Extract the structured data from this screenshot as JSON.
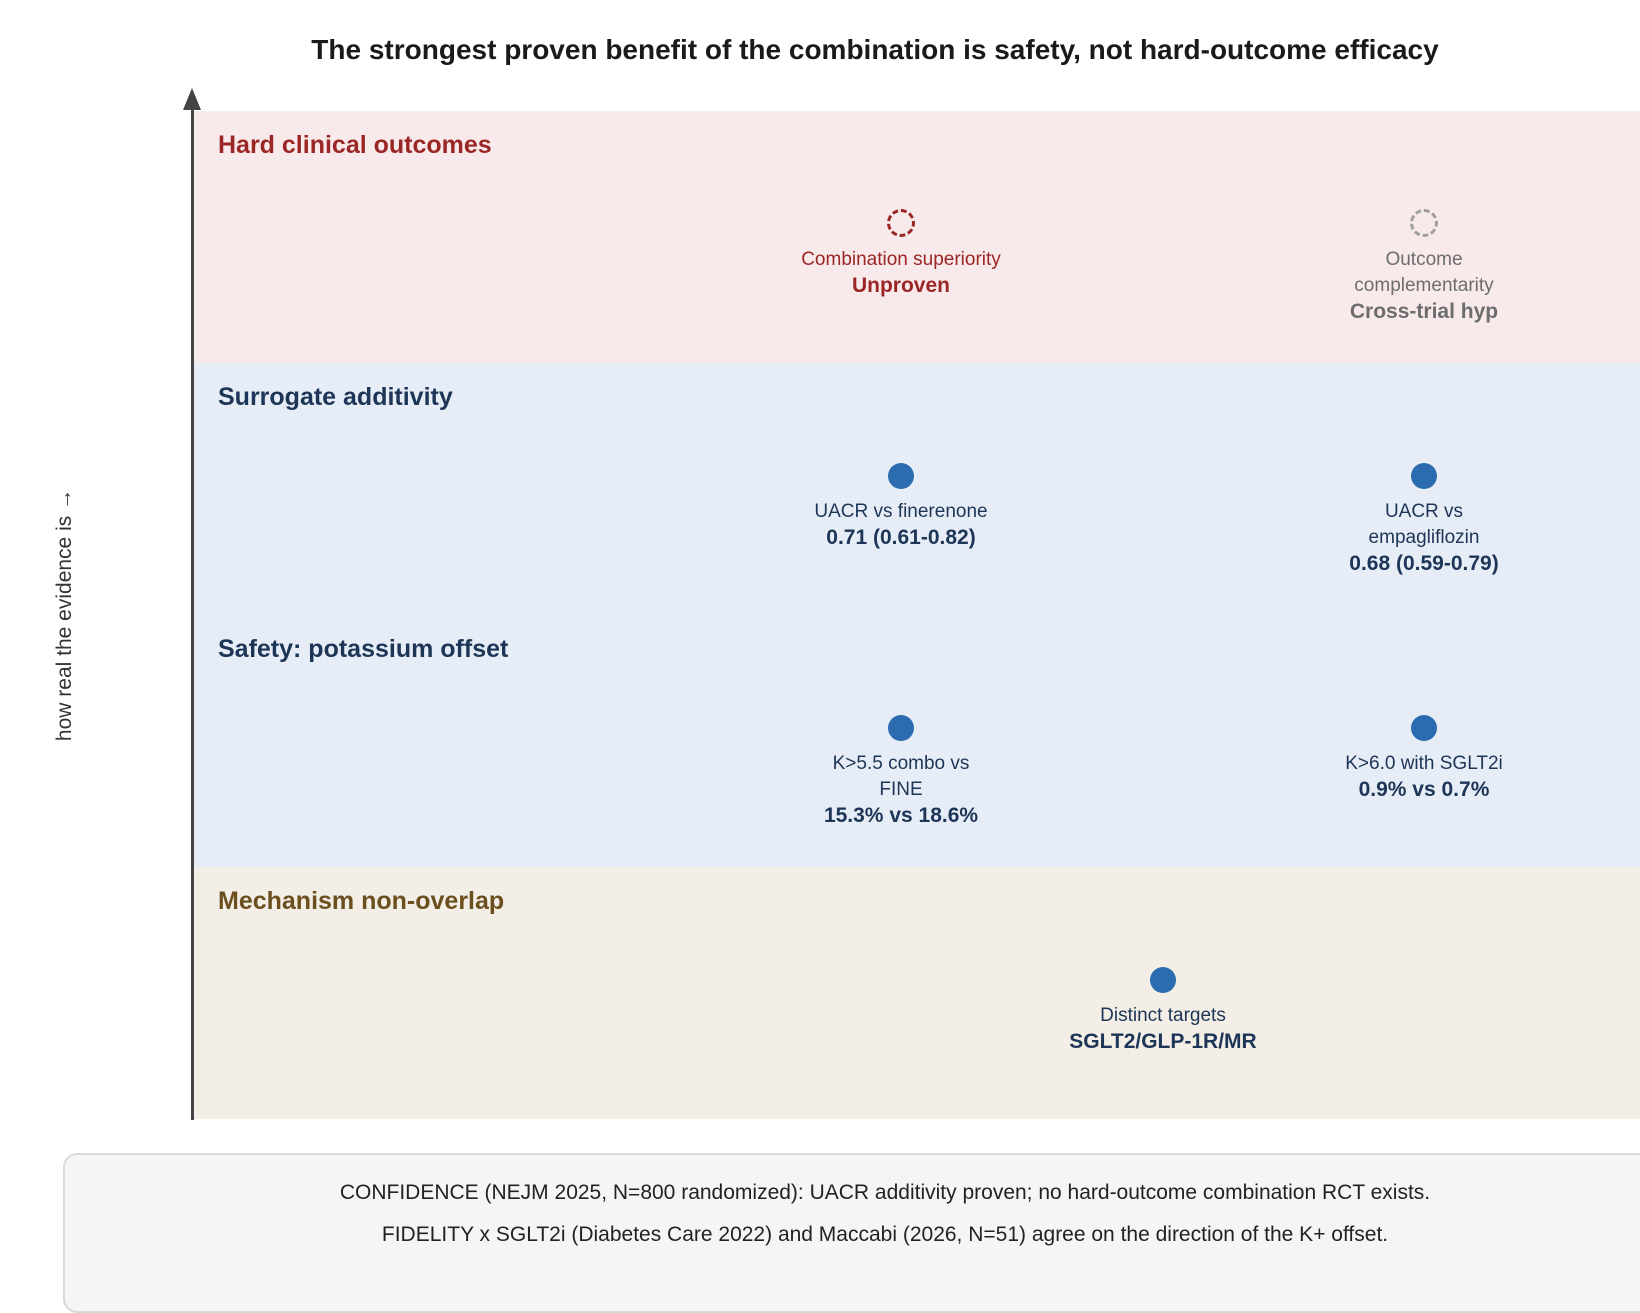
{
  "title": "The strongest proven benefit of the combination is safety, not hard-outcome efficacy",
  "y_axis_label": "how real the evidence is →",
  "tiers": [
    {
      "label": "Hard clinical outcomes",
      "color": "#9b2626",
      "background": "#f8eaea"
    },
    {
      "label": "Surrogate additivity",
      "color": "#1d3557",
      "background": "#e7edf6"
    },
    {
      "label": "Safety: potassium offset",
      "color": "#1d3557",
      "background": "#e7edf6"
    },
    {
      "label": "Mechanism non-overlap",
      "color": "#6b4f1e",
      "background": "#f3efe6"
    }
  ],
  "markers": {
    "combination_superiority": {
      "label": "Combination superiority",
      "value": "Unproven",
      "style": "dashed-red"
    },
    "outcome_complementarity": {
      "label": "Outcome complementarity",
      "value": "Cross-trial hyp",
      "style": "dashed-grey"
    },
    "uacr_finerenone": {
      "label": "UACR vs finerenone",
      "value": "0.71 (0.61-0.82)",
      "style": "solid-blue"
    },
    "uacr_empagliflozin": {
      "label": "UACR vs empagliflozin",
      "value": "0.68 (0.59-0.79)",
      "style": "solid-blue"
    },
    "k55_combo": {
      "label": "K>5.5 combo vs FINE",
      "value": "15.3% vs 18.6%",
      "style": "solid-blue"
    },
    "k60_sglt2i": {
      "label": "K>6.0 with SGLT2i",
      "value": "0.9% vs 0.7%",
      "style": "solid-blue"
    },
    "distinct_targets": {
      "label": "Distinct targets",
      "value": "SGLT2/GLP-1R/MR",
      "style": "solid-blue"
    }
  },
  "confidence": {
    "line1": "CONFIDENCE (NEJM 2025, N=800 randomized): UACR additivity proven; no hard-outcome combination RCT exists.",
    "line2": "FIDELITY x SGLT2i (Diabetes Care 2022) and Maccabi (2026, N=51) agree on the direction of the K+ offset."
  },
  "colors": {
    "marker_fill": "#2b6cb0",
    "axis": "#444444"
  }
}
